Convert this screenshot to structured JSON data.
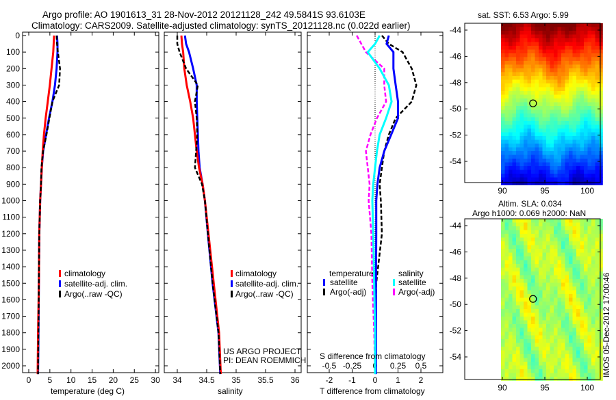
{
  "title": {
    "line1": "Argo profile: AO 1901613_31 28-Nov-2012 20121128_242 49.5841S 93.6103E",
    "line2": "Climatology: CARS2009. Satellite-adjusted climatology: synTS_20121128.nc (0.022d earlier)"
  },
  "colors": {
    "climatology": "#ff0000",
    "satellite": "#0000ff",
    "argo": "#000000",
    "sal_satellite": "#00ffff",
    "sal_argo": "#ff00ff"
  },
  "chart_data": [
    {
      "type": "line",
      "name": "temperature",
      "xlabel": "temperature (deg C)",
      "xlim": [
        -1.5,
        31
      ],
      "xticks": [
        0,
        5,
        10,
        15,
        20,
        25,
        30
      ],
      "ylim": [
        0,
        2050
      ],
      "yticks": [
        0,
        100,
        200,
        300,
        400,
        500,
        600,
        700,
        800,
        900,
        1000,
        1100,
        1200,
        1300,
        1400,
        1500,
        1600,
        1700,
        1800,
        1900,
        2000
      ],
      "legend": [
        "climatology",
        "satellite-adj. clim.",
        "Argo(..raw -QC)"
      ],
      "depth": [
        0,
        50,
        100,
        200,
        300,
        400,
        500,
        600,
        700,
        800,
        900,
        1000,
        1200,
        1500,
        1800,
        2050
      ],
      "series": [
        {
          "name": "climatology",
          "values": [
            6.0,
            5.9,
            5.8,
            5.4,
            5.0,
            4.5,
            4.0,
            3.6,
            3.3,
            3.1,
            2.9,
            2.7,
            2.5,
            2.4,
            2.2,
            2.1
          ]
        },
        {
          "name": "satellite-adj. clim.",
          "values": [
            6.7,
            6.8,
            6.8,
            6.6,
            6.2,
            5.6,
            4.8,
            4.1,
            3.4,
            3.1,
            2.9,
            2.7,
            2.5,
            2.4,
            2.3,
            2.2
          ]
        },
        {
          "name": "Argo(..raw -QC)",
          "values": [
            6.6,
            6.7,
            6.9,
            7.4,
            7.2,
            5.6,
            4.9,
            4.2,
            3.4,
            3.0,
            2.9,
            2.7,
            2.5,
            2.4,
            2.3,
            2.2
          ]
        }
      ]
    },
    {
      "type": "line",
      "name": "salinity",
      "xlabel": "salinity",
      "xlim": [
        33.79,
        36.1
      ],
      "xticks": [
        34,
        34.5,
        35,
        35.5,
        36
      ],
      "ylim": [
        0,
        2050
      ],
      "legend": [
        "climatology",
        "satellite-adj. clim.",
        "Argo(..raw -QC)"
      ],
      "annotation": [
        "US ARGO PROJECT",
        "PI: DEAN ROEMMICH"
      ],
      "depth": [
        0,
        50,
        100,
        200,
        300,
        400,
        500,
        600,
        700,
        800,
        900,
        1000,
        1200,
        1500,
        1800,
        2050
      ],
      "series": [
        {
          "name": "climatology",
          "values": [
            34.07,
            34.08,
            34.1,
            34.12,
            34.16,
            34.22,
            34.27,
            34.3,
            34.33,
            34.37,
            34.43,
            34.47,
            34.53,
            34.62,
            34.71,
            34.74
          ]
        },
        {
          "name": "satellite-adj. clim.",
          "values": [
            34.13,
            34.15,
            34.2,
            34.27,
            34.33,
            34.33,
            34.34,
            34.35,
            34.36,
            34.38,
            34.43,
            34.47,
            34.52,
            34.6,
            34.7,
            34.73
          ]
        },
        {
          "name": "Argo(..raw -QC)",
          "values": [
            34.0,
            34.0,
            34.04,
            34.15,
            34.35,
            34.3,
            34.33,
            34.34,
            34.32,
            34.3,
            34.42,
            34.47,
            34.52,
            34.6,
            34.7,
            34.73
          ]
        }
      ]
    },
    {
      "type": "line",
      "name": "difference",
      "xlabel": "T difference from climatology",
      "xlabel2": "S difference from climatology",
      "xlim": [
        -3,
        3
      ],
      "xticks": [
        -2,
        -1,
        0,
        1,
        2
      ],
      "xticks2": [
        "-0.5",
        "-0.25",
        "0",
        "0.25",
        "0.5"
      ],
      "ylim": [
        0,
        2050
      ],
      "legend_headers": [
        "temperature",
        "salinity"
      ],
      "legend": [
        "satellite",
        "Argo(-adj)",
        "satellite",
        "Argo(-adj)"
      ],
      "depth": [
        0,
        50,
        100,
        200,
        300,
        400,
        500,
        600,
        700,
        800,
        900,
        1000,
        1200,
        1500,
        1800,
        2050
      ],
      "series": [
        {
          "name": "T satellite",
          "values": [
            0.6,
            0.5,
            0.8,
            0.8,
            0.9,
            1.0,
            1.0,
            0.7,
            0.4,
            0.2,
            0.1,
            0.05,
            0.05,
            0.04,
            0.04,
            0.04
          ]
        },
        {
          "name": "T Argo(-adj)",
          "values": [
            0.3,
            0.6,
            1.2,
            1.6,
            1.8,
            1.6,
            0.9,
            0.6,
            0.4,
            0.3,
            0.2,
            0.25,
            0.3,
            0.05,
            0.02,
            0.02
          ]
        },
        {
          "name": "S satellite",
          "values": [
            0.05,
            0.0,
            -0.08,
            0.05,
            0.15,
            0.18,
            0.12,
            0.05,
            0.02,
            0.0,
            -0.02,
            -0.03,
            -0.02,
            -0.01,
            0.0,
            0.0
          ]
        },
        {
          "name": "S Argo(-adj)",
          "values": [
            -0.2,
            -0.15,
            -0.1,
            0.1,
            0.1,
            0.12,
            0.02,
            -0.05,
            -0.1,
            -0.08,
            -0.06,
            -0.07,
            -0.04,
            -0.03,
            -0.01,
            0.0
          ]
        }
      ]
    },
    {
      "type": "heatmap",
      "name": "sst-map",
      "title": "sat. SST: 6.53 Argo: 5.99",
      "xticks": [
        90,
        95,
        100
      ],
      "yticks": [
        -44,
        -46,
        -48,
        -50,
        -52,
        -54
      ],
      "marker": {
        "lon": 93.61,
        "lat": -49.58
      }
    },
    {
      "type": "heatmap",
      "name": "sla-map",
      "title": "Altim. SLA: 0.034",
      "subtitle": "Argo h1000: 0.069 h2000: NaN",
      "xticks": [
        90,
        95,
        100
      ],
      "yticks": [
        -44,
        -46,
        -48,
        -50,
        -52,
        -54
      ],
      "marker": {
        "lon": 93.61,
        "lat": -49.58
      }
    }
  ],
  "stamp": "IMOS 05-Dec-2012 17:00:46"
}
